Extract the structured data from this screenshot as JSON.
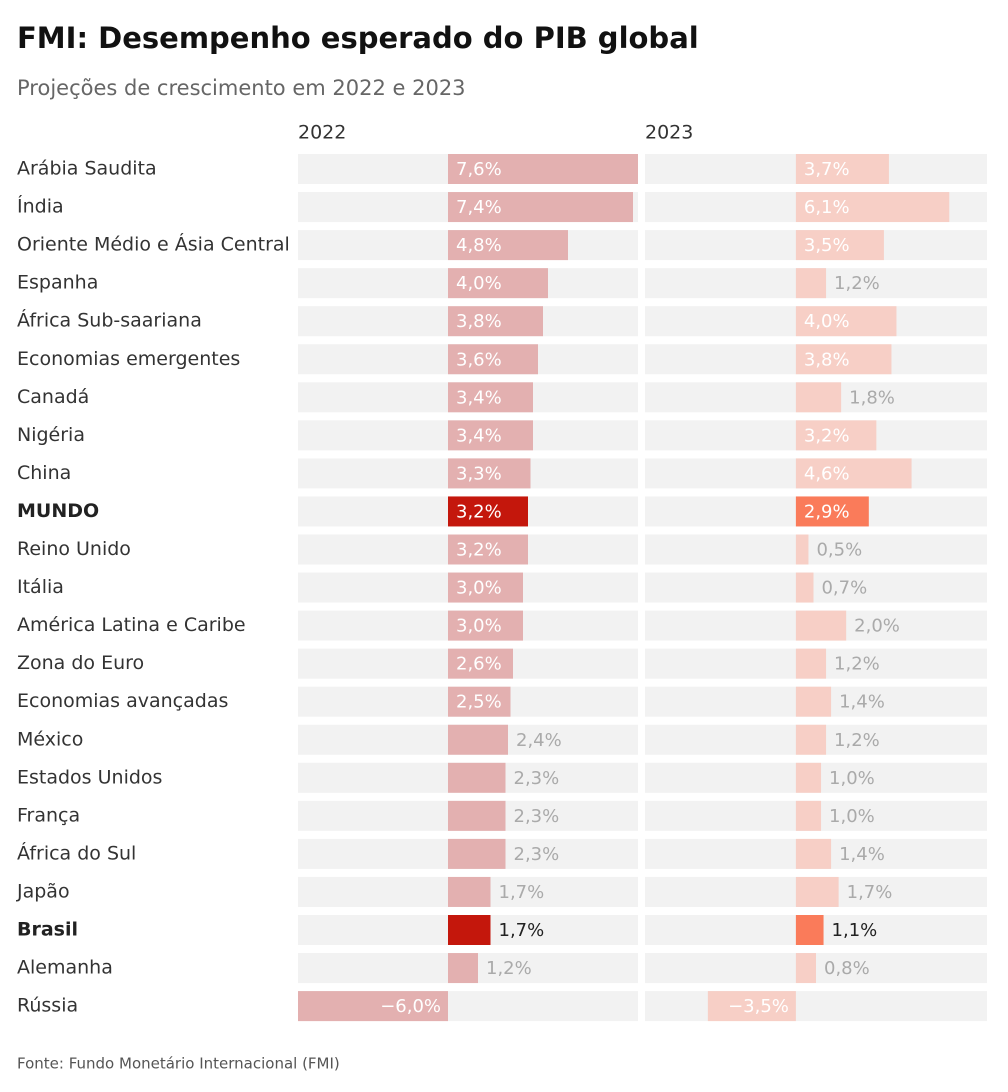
{
  "chart_data": {
    "type": "bar",
    "title": "FMI: Desempenho esperado do PIB global",
    "subtitle": "Projeções de crescimento em 2022 e 2023",
    "source": "Fonte: Fundo Monetário Internacional (FMI)",
    "categories": [
      "Arábia Saudita",
      "Índia",
      "Oriente Médio e Ásia Central",
      "Espanha",
      "África Sub-saariana",
      "Economias emergentes",
      "Canadá",
      "Nigéria",
      "China",
      "MUNDO",
      "Reino Unido",
      "Itália",
      "América Latina e Caribe",
      "Zona do Euro",
      "Economias avançadas",
      "México",
      "Estados Unidos",
      "França",
      "África do Sul",
      "Japão",
      "Brasil",
      "Alemanha",
      "Rússia"
    ],
    "xlim": [
      -6,
      7.6
    ],
    "series": [
      {
        "name": "2022",
        "color": "#e3b0b0",
        "colors": [
          "#e3b0b0",
          "#e3b0b0",
          "#e3b0b0",
          "#e3b0b0",
          "#e3b0b0",
          "#e3b0b0",
          "#e3b0b0",
          "#e3b0b0",
          "#e3b0b0",
          "#c4170c",
          "#e3b0b0",
          "#e3b0b0",
          "#e3b0b0",
          "#e3b0b0",
          "#e3b0b0",
          "#e3b0b0",
          "#e3b0b0",
          "#e3b0b0",
          "#e3b0b0",
          "#e3b0b0",
          "#c4170c",
          "#e3b0b0",
          "#e3b0b0"
        ],
        "values": [
          7.6,
          7.4,
          4.8,
          4.0,
          3.8,
          3.6,
          3.4,
          3.4,
          3.3,
          3.2,
          3.2,
          3.0,
          3.0,
          2.6,
          2.5,
          2.4,
          2.3,
          2.3,
          2.3,
          1.7,
          1.7,
          1.2,
          -6.0
        ],
        "value_labels": [
          "7,6%",
          "7,4%",
          "4,8%",
          "4,0%",
          "3,8%",
          "3,6%",
          "3,4%",
          "3,4%",
          "3,3%",
          "3,2%",
          "3,2%",
          "3,0%",
          "3,0%",
          "2,6%",
          "2,5%",
          "2,4%",
          "2,3%",
          "2,3%",
          "2,3%",
          "1,7%",
          "1,7%",
          "1,2%",
          "−6,0%"
        ]
      },
      {
        "name": "2023",
        "color": "#f7cfc6",
        "colors": [
          "#f7cfc6",
          "#f7cfc6",
          "#f7cfc6",
          "#f7cfc6",
          "#f7cfc6",
          "#f7cfc6",
          "#f7cfc6",
          "#f7cfc6",
          "#f7cfc6",
          "#fa7b5a",
          "#f7cfc6",
          "#f7cfc6",
          "#f7cfc6",
          "#f7cfc6",
          "#f7cfc6",
          "#f7cfc6",
          "#f7cfc6",
          "#f7cfc6",
          "#f7cfc6",
          "#f7cfc6",
          "#fa7b5a",
          "#f7cfc6",
          "#f7cfc6"
        ],
        "values": [
          3.7,
          6.1,
          3.5,
          1.2,
          4.0,
          3.8,
          1.8,
          3.2,
          4.6,
          2.9,
          0.5,
          0.7,
          2.0,
          1.2,
          1.4,
          1.2,
          1.0,
          1.0,
          1.4,
          1.7,
          1.1,
          0.8,
          -3.5
        ],
        "value_labels": [
          "3,7%",
          "6,1%",
          "3,5%",
          "1,2%",
          "4,0%",
          "3,8%",
          "1,8%",
          "3,2%",
          "4,6%",
          "2,9%",
          "0,5%",
          "0,7%",
          "2,0%",
          "1,2%",
          "1,4%",
          "1,2%",
          "1,0%",
          "1,0%",
          "1,4%",
          "1,7%",
          "1,1%",
          "0,8%",
          "−3,5%"
        ]
      }
    ]
  }
}
